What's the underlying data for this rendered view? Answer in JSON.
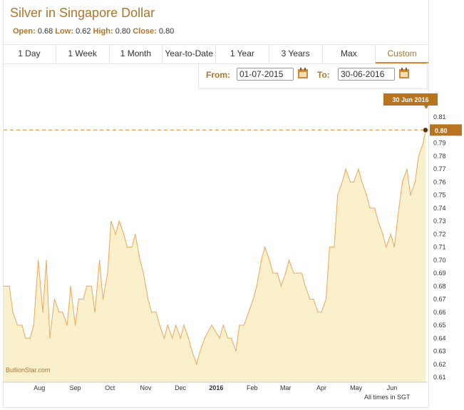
{
  "header": {
    "title": "Silver in Singapore Dollar",
    "open_label": "Open:",
    "open": "0.68",
    "low_label": "Low:",
    "low": "0.62",
    "high_label": "High:",
    "high": "0.80",
    "close_label": "Close:",
    "close": "0.80"
  },
  "tabs": [
    "1 Day",
    "1 Week",
    "1 Month",
    "Year-to-Date",
    "1 Year",
    "3 Years",
    "Max",
    "Custom"
  ],
  "active_tab": "Custom",
  "range": {
    "from_label": "From:",
    "from": "01-07-2015",
    "to_label": "To:",
    "to": "30-06-2016"
  },
  "watermark": "BullionStar.com",
  "footer_note": "All times in SGT",
  "colors": {
    "accent": "#b0742a",
    "line": "#e8a85a",
    "fill": "#fbf0cc",
    "tooltip": "#b8741f"
  },
  "icons": [
    "calendar-icon",
    "calendar-icon"
  ],
  "chart_data": {
    "type": "area",
    "title": "Silver in Singapore Dollar",
    "xlabel": "",
    "ylabel": "",
    "x_ticks": [
      "Aug",
      "Sep",
      "Oct",
      "Nov",
      "Dec",
      "2016",
      "Feb",
      "Mar",
      "Apr",
      "May",
      "Jun"
    ],
    "x_tick_months": [
      1,
      2,
      3,
      4,
      5,
      6,
      7,
      8,
      9,
      10,
      11
    ],
    "y_ticks": [
      0.61,
      0.62,
      0.63,
      0.64,
      0.65,
      0.66,
      0.67,
      0.68,
      0.69,
      0.7,
      0.71,
      0.72,
      0.73,
      0.74,
      0.75,
      0.76,
      0.77,
      0.78,
      0.79,
      0.81
    ],
    "ylim": [
      0.61,
      0.815
    ],
    "xlim": [
      "2015-07-01",
      "2016-06-30"
    ],
    "grid": false,
    "last_point": {
      "x": "30 Jun 2016",
      "y": "0.80"
    },
    "series": [
      {
        "x": [
          "2015-07-01",
          "2015-07-06",
          "2015-07-09",
          "2015-07-13",
          "2015-07-17",
          "2015-07-20",
          "2015-07-24",
          "2015-07-27",
          "2015-07-31",
          "2015-08-04",
          "2015-08-07",
          "2015-08-10",
          "2015-08-14",
          "2015-08-18",
          "2015-08-21",
          "2015-08-25",
          "2015-08-28",
          "2015-09-01",
          "2015-09-04",
          "2015-09-08",
          "2015-09-11",
          "2015-09-15",
          "2015-09-18",
          "2015-09-22",
          "2015-09-25",
          "2015-09-29",
          "2015-10-02",
          "2015-10-06",
          "2015-10-09",
          "2015-10-13",
          "2015-10-16",
          "2015-10-20",
          "2015-10-23",
          "2015-10-27",
          "2015-10-30",
          "2015-11-03",
          "2015-11-06",
          "2015-11-10",
          "2015-11-13",
          "2015-11-17",
          "2015-11-20",
          "2015-11-24",
          "2015-11-27",
          "2015-12-01",
          "2015-12-04",
          "2015-12-08",
          "2015-12-11",
          "2015-12-15",
          "2015-12-18",
          "2015-12-22",
          "2015-12-28",
          "2016-01-04",
          "2016-01-07",
          "2016-01-11",
          "2016-01-14",
          "2016-01-18",
          "2016-01-21",
          "2016-01-25",
          "2016-01-29",
          "2016-02-02",
          "2016-02-05",
          "2016-02-09",
          "2016-02-12",
          "2016-02-16",
          "2016-02-19",
          "2016-02-23",
          "2016-02-26",
          "2016-03-01",
          "2016-03-04",
          "2016-03-08",
          "2016-03-11",
          "2016-03-15",
          "2016-03-18",
          "2016-03-22",
          "2016-03-25",
          "2016-03-29",
          "2016-04-01",
          "2016-04-05",
          "2016-04-08",
          "2016-04-12",
          "2016-04-15",
          "2016-04-19",
          "2016-04-22",
          "2016-04-26",
          "2016-04-29",
          "2016-05-03",
          "2016-05-06",
          "2016-05-10",
          "2016-05-13",
          "2016-05-17",
          "2016-05-20",
          "2016-05-24",
          "2016-05-27",
          "2016-05-31",
          "2016-06-03",
          "2016-06-07",
          "2016-06-10",
          "2016-06-14",
          "2016-06-17",
          "2016-06-21",
          "2016-06-24",
          "2016-06-28",
          "2016-06-30"
        ],
        "values": [
          0.68,
          0.68,
          0.66,
          0.65,
          0.65,
          0.64,
          0.64,
          0.65,
          0.7,
          0.66,
          0.7,
          0.64,
          0.67,
          0.66,
          0.66,
          0.65,
          0.68,
          0.65,
          0.67,
          0.67,
          0.68,
          0.68,
          0.66,
          0.7,
          0.67,
          0.69,
          0.73,
          0.72,
          0.73,
          0.72,
          0.71,
          0.71,
          0.72,
          0.7,
          0.69,
          0.67,
          0.66,
          0.66,
          0.65,
          0.64,
          0.65,
          0.64,
          0.65,
          0.64,
          0.65,
          0.64,
          0.63,
          0.62,
          0.63,
          0.64,
          0.65,
          0.64,
          0.65,
          0.64,
          0.64,
          0.63,
          0.65,
          0.65,
          0.66,
          0.67,
          0.68,
          0.7,
          0.71,
          0.7,
          0.69,
          0.69,
          0.68,
          0.69,
          0.7,
          0.69,
          0.69,
          0.69,
          0.68,
          0.67,
          0.67,
          0.66,
          0.66,
          0.67,
          0.71,
          0.71,
          0.75,
          0.76,
          0.77,
          0.76,
          0.76,
          0.77,
          0.76,
          0.75,
          0.74,
          0.74,
          0.73,
          0.72,
          0.71,
          0.72,
          0.71,
          0.74,
          0.76,
          0.77,
          0.75,
          0.76,
          0.78,
          0.79,
          0.8
        ]
      }
    ]
  }
}
